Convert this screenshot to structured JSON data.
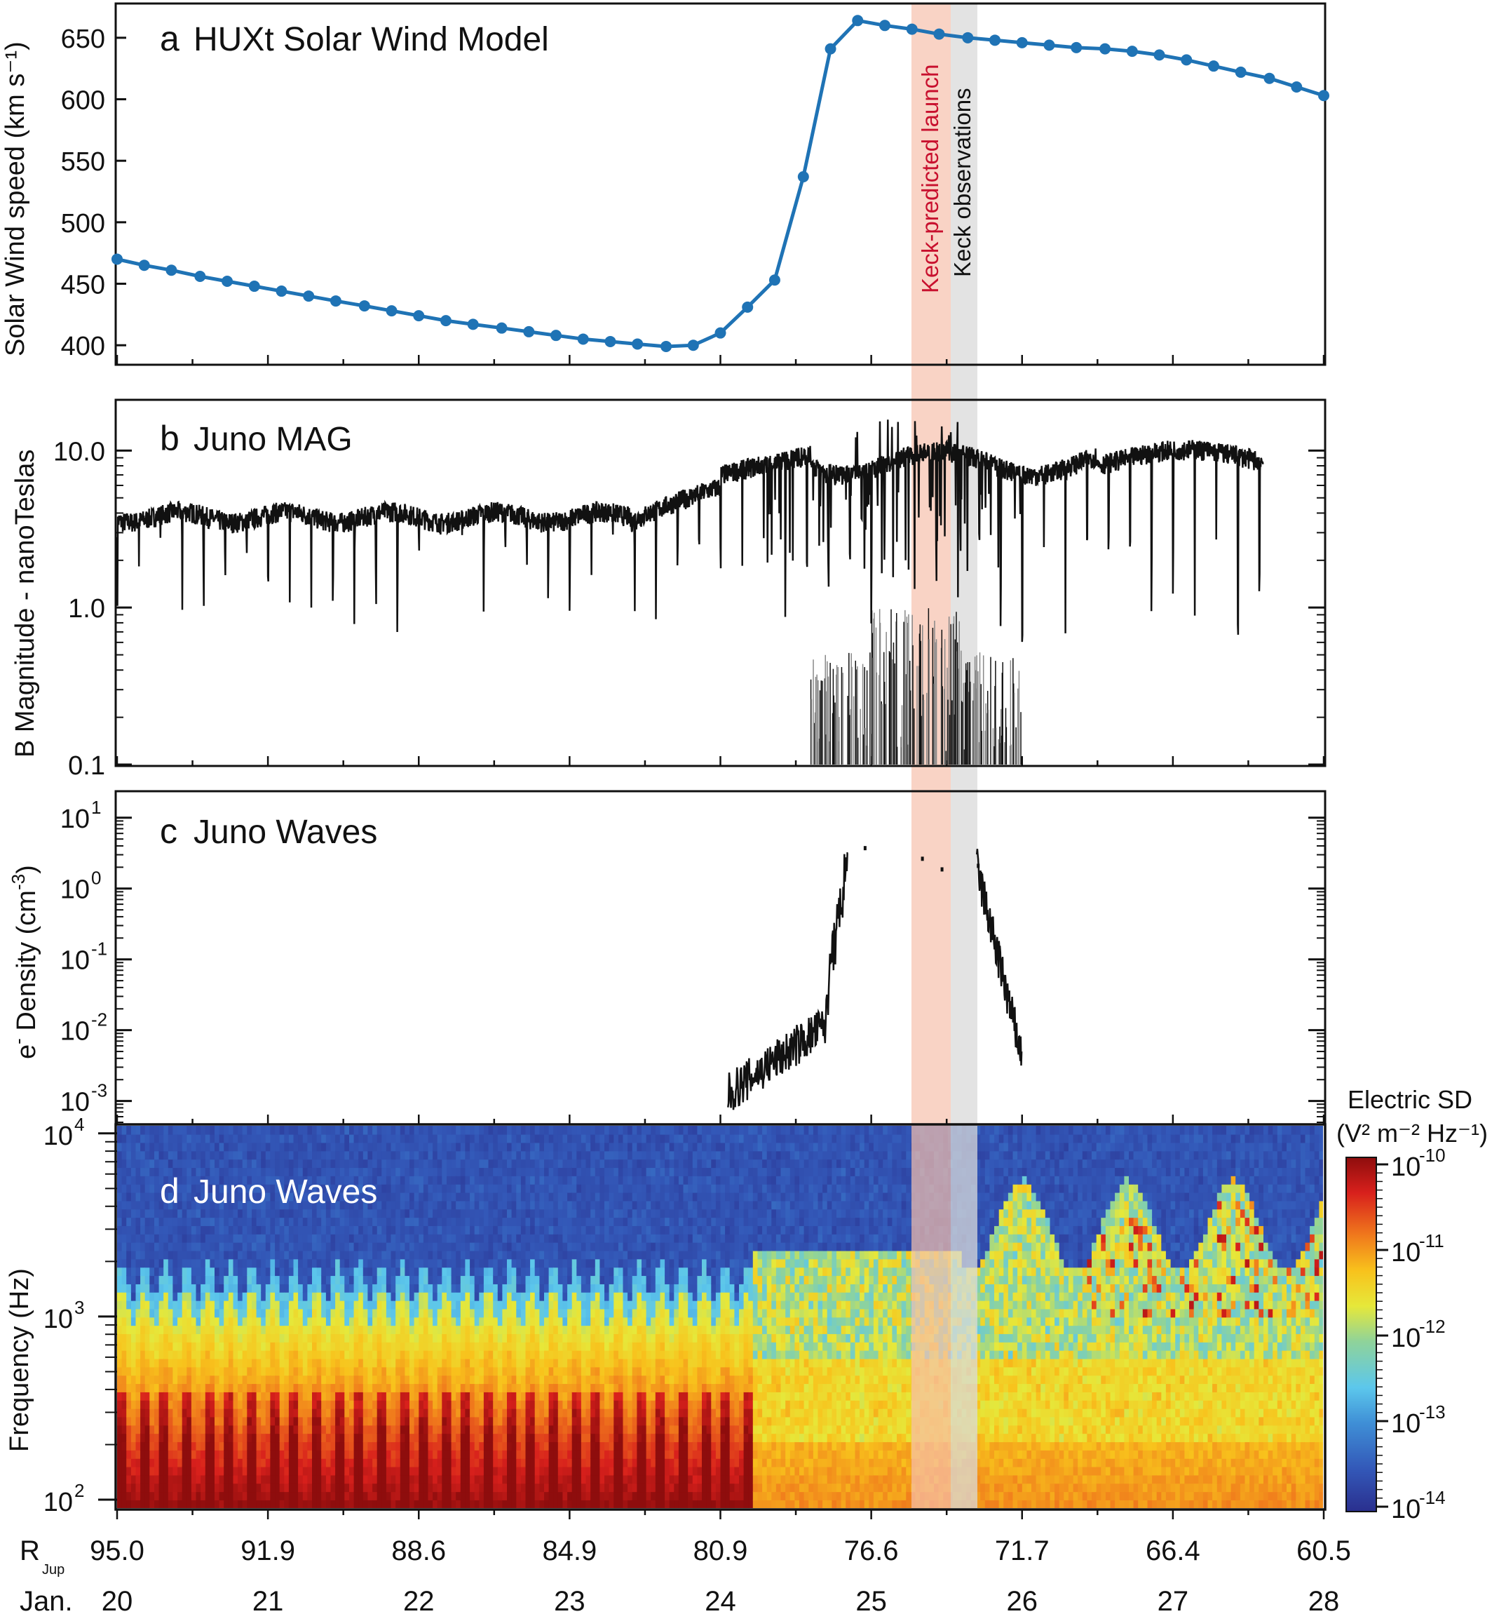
{
  "chart_data": [
    {
      "panel": "a",
      "type": "line",
      "title": "HUXt Solar Wind Model",
      "ylabel": "Solar Wind speed (km s⁻¹)",
      "ylim": [
        387,
        675
      ],
      "yticks": [
        "400",
        "450",
        "500",
        "550",
        "600",
        "650"
      ],
      "x_days": [
        20.0,
        20.18,
        20.36,
        20.55,
        20.73,
        20.91,
        21.09,
        21.27,
        21.45,
        21.64,
        21.82,
        22.0,
        22.18,
        22.36,
        22.55,
        22.73,
        22.91,
        23.09,
        23.27,
        23.45,
        23.64,
        23.82,
        24.0,
        24.18,
        24.36,
        24.55,
        24.73,
        24.91,
        25.09,
        25.27,
        25.45,
        25.64,
        25.82,
        26.0,
        26.18,
        26.36,
        26.55,
        26.73,
        26.91,
        27.09,
        27.27,
        27.45,
        27.64,
        27.82,
        28.0
      ],
      "speed": [
        470,
        465,
        461,
        456,
        452,
        448,
        444,
        440,
        436,
        432,
        428,
        424,
        420,
        417,
        414,
        411,
        408,
        405,
        403,
        401,
        399,
        400,
        410,
        431,
        453,
        537,
        641,
        664,
        660,
        657,
        653,
        650,
        648,
        646,
        644,
        642,
        641,
        639,
        636,
        632,
        627,
        622,
        617,
        610,
        603
      ],
      "series_color": "#1f73b5",
      "annotations": [
        {
          "text": "Keck-predicted launch",
          "color": "#c8102e"
        },
        {
          "text": "Keck observations",
          "color": "#111111"
        }
      ]
    },
    {
      "panel": "b",
      "type": "line",
      "title": "Juno MAG",
      "ylabel": "B Magnitude - nanoTeslas",
      "yscale": "log",
      "ylim": [
        0.1,
        20
      ],
      "yticks": [
        "0.1",
        "1.0",
        "10.0"
      ]
    },
    {
      "panel": "c",
      "type": "line",
      "title": "Juno Waves",
      "ylabel_main": "e",
      "ylabel_sup": "-",
      "ylabel_rest": " Density (cm",
      "ylabel_sup2": "-3",
      "ylabel_end": ")",
      "yscale": "log",
      "ylim": [
        0.0005,
        15
      ],
      "yticks": [
        {
          "base": "10",
          "exp": "1"
        },
        {
          "base": "10",
          "exp": "0"
        },
        {
          "base": "10",
          "exp": "-1"
        },
        {
          "base": "10",
          "exp": "-2"
        },
        {
          "base": "10",
          "exp": "-3"
        }
      ]
    },
    {
      "panel": "d",
      "type": "heatmap",
      "title": "Juno Waves",
      "ylabel": "Frequency (Hz)",
      "yscale": "log",
      "ylim": [
        90,
        11000
      ],
      "yticks": [
        {
          "base": "10",
          "exp": "4"
        },
        {
          "base": "10",
          "exp": "3"
        },
        {
          "base": "10",
          "exp": "2"
        }
      ],
      "colorbar": {
        "title_line1": "Electric SD",
        "title_line2": "(V² m⁻² Hz⁻¹)",
        "ticks": [
          {
            "base": "10",
            "exp": "-10"
          },
          {
            "base": "10",
            "exp": "-11"
          },
          {
            "base": "10",
            "exp": "-12"
          },
          {
            "base": "10",
            "exp": "-13"
          },
          {
            "base": "10",
            "exp": "-14"
          }
        ]
      }
    }
  ],
  "xaxis": {
    "row1_label": "R",
    "row1_label_sub": "Jup",
    "row1_ticks": [
      "95.0",
      "91.9",
      "88.6",
      "84.9",
      "80.9",
      "76.6",
      "71.7",
      "66.4",
      "60.5"
    ],
    "row2_label": "Jan.",
    "row2_ticks": [
      "20",
      "21",
      "22",
      "23",
      "24",
      "25",
      "26",
      "27",
      "28"
    ]
  },
  "panel_letters": [
    "a",
    "b",
    "c",
    "d"
  ],
  "shading": {
    "launch_color": "#f6c1ad",
    "keck_color": "#d9d9d9"
  }
}
